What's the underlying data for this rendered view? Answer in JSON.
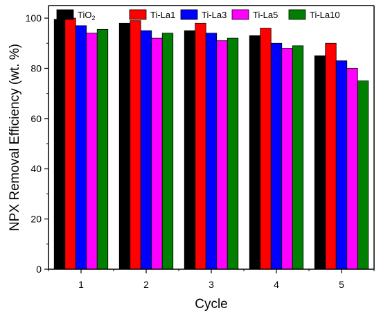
{
  "chart_data": {
    "type": "bar",
    "title": "",
    "xlabel": "Cycle",
    "ylabel": "NPX Removal Efficiency (wt. %)",
    "categories": [
      "1",
      "2",
      "3",
      "4",
      "5"
    ],
    "ylim": [
      0,
      105
    ],
    "yticks": [
      0,
      20,
      40,
      60,
      80,
      100
    ],
    "grid": false,
    "legend_position": "top",
    "series": [
      {
        "name": "TiO",
        "name_subscript": "2",
        "color": "#000000",
        "values": [
          99.5,
          98,
          95,
          93,
          85
        ]
      },
      {
        "name": "Ti-La1",
        "color": "#ff0000",
        "values": [
          100,
          99,
          98,
          96,
          90
        ]
      },
      {
        "name": "Ti-La3",
        "color": "#0000ff",
        "values": [
          97,
          95,
          94,
          90,
          83
        ]
      },
      {
        "name": "Ti-La5",
        "color": "#ff00ff",
        "values": [
          94,
          92,
          91,
          88,
          80
        ]
      },
      {
        "name": "Ti-La10",
        "color": "#007f00",
        "values": [
          95.5,
          94,
          92,
          89,
          75
        ]
      }
    ]
  }
}
